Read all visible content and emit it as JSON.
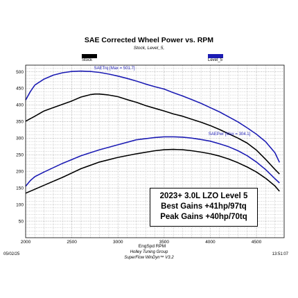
{
  "chart_data": {
    "type": "line",
    "title": "SAE Corrected Wheel Power vs. RPM",
    "subtitle": "Stock, Level_5,",
    "xlabel": "EngSpd RPM",
    "ylabel": "",
    "xlim": [
      2000,
      4800
    ],
    "ylim": [
      0,
      520
    ],
    "x_ticks": [
      2000,
      2500,
      3000,
      3500,
      4000,
      4500
    ],
    "y_ticks": [
      50,
      100,
      150,
      200,
      250,
      300,
      350,
      400,
      450,
      500
    ],
    "grid": true,
    "legend": [
      {
        "name": "Stock",
        "color": "#000000"
      },
      {
        "name": "Level_5",
        "color": "#1c1cb4"
      }
    ],
    "series": [
      {
        "name": "Stock Torque",
        "color": "#000000",
        "x": [
          2000,
          2100,
          2200,
          2300,
          2400,
          2500,
          2600,
          2700,
          2750,
          2800,
          2900,
          3000,
          3100,
          3200,
          3300,
          3400,
          3500,
          3600,
          3700,
          3800,
          3900,
          4000,
          4100,
          4200,
          4300,
          4400,
          4500,
          4600,
          4700,
          4750
        ],
        "y": [
          351,
          366,
          382,
          392,
          402,
          412,
          424,
          431,
          433,
          433,
          430,
          425,
          416,
          408,
          398,
          390,
          382,
          373,
          366,
          357,
          348,
          338,
          326,
          313,
          300,
          285,
          264,
          236,
          206,
          192
        ]
      },
      {
        "name": "Level_5 Torque",
        "color": "#1c1cb4",
        "x": [
          2000,
          2050,
          2100,
          2200,
          2300,
          2400,
          2500,
          2600,
          2700,
          2800,
          2900,
          3000,
          3100,
          3200,
          3300,
          3400,
          3500,
          3600,
          3700,
          3800,
          3900,
          4000,
          4100,
          4200,
          4300,
          4400,
          4500,
          4600,
          4700,
          4750
        ],
        "y": [
          415,
          440,
          460,
          478,
          490,
          497,
          501,
          502,
          501,
          498,
          493,
          487,
          480,
          472,
          463,
          455,
          448,
          437,
          427,
          416,
          405,
          392,
          379,
          364,
          349,
          331,
          312,
          289,
          256,
          227
        ]
      },
      {
        "name": "Stock Power",
        "color": "#000000",
        "x": [
          2000,
          2200,
          2400,
          2600,
          2800,
          3000,
          3200,
          3400,
          3500,
          3600,
          3700,
          3800,
          3900,
          4000,
          4100,
          4200,
          4300,
          4400,
          4500,
          4600,
          4700,
          4750
        ],
        "y": [
          134,
          158,
          182,
          208,
          228,
          242,
          253,
          262,
          265,
          266,
          265,
          262,
          258,
          253,
          246,
          237,
          226,
          213,
          198,
          179,
          156,
          140
        ]
      },
      {
        "name": "Level_5 Power",
        "color": "#1c1cb4",
        "x": [
          2000,
          2050,
          2100,
          2200,
          2400,
          2600,
          2800,
          3000,
          3200,
          3400,
          3500,
          3600,
          3700,
          3800,
          3900,
          4000,
          4100,
          4200,
          4300,
          4400,
          4500,
          4600,
          4700,
          4750
        ],
        "y": [
          155,
          172,
          184,
          198,
          224,
          247,
          265,
          280,
          295,
          302,
          304,
          304,
          303,
          300,
          296,
          291,
          283,
          274,
          262,
          247,
          228,
          205,
          178,
          165
        ]
      }
    ],
    "annotations": [
      {
        "text": "SAETrq [Max = 501.7]",
        "x": 2740,
        "y": 507,
        "color": "#1c1cb4"
      },
      {
        "text": "SAEPwr [Max = 304.1]",
        "x": 3980,
        "y": 309,
        "color": "#1c1cb4"
      }
    ]
  },
  "infobox": {
    "line1": "2023+ 3.0L LZO Level 5",
    "line2": "Best Gains +41hp/97tq",
    "line3": "Peak Gains +40hp/70tq"
  },
  "footer": {
    "date": "05/02/25",
    "line1": "Holley Tuning Group",
    "line2": "SuperFlow WinDyn™ V3.2",
    "time": "13:51:07"
  }
}
